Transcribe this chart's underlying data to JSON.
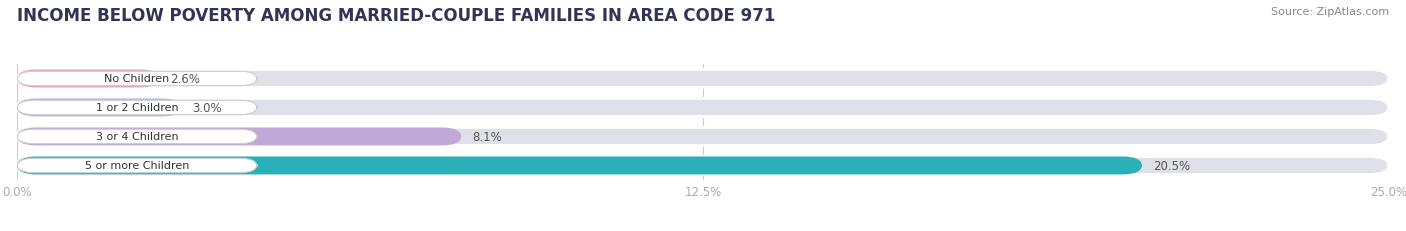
{
  "title": "INCOME BELOW POVERTY AMONG MARRIED-COUPLE FAMILIES IN AREA CODE 971",
  "source": "Source: ZipAtlas.com",
  "categories": [
    "No Children",
    "1 or 2 Children",
    "3 or 4 Children",
    "5 or more Children"
  ],
  "values": [
    2.6,
    3.0,
    8.1,
    20.5
  ],
  "labels": [
    "2.6%",
    "3.0%",
    "8.1%",
    "20.5%"
  ],
  "bar_colors": [
    "#f2a0a8",
    "#aab8e8",
    "#c0a8d8",
    "#2ab0b8"
  ],
  "xlim_max": 25.0,
  "xticks": [
    0.0,
    12.5,
    25.0
  ],
  "xticklabels": [
    "0.0%",
    "12.5%",
    "25.0%"
  ],
  "bg_color": "#ffffff",
  "bar_bg_color": "#e0e0e8",
  "title_fontsize": 12,
  "source_fontsize": 8,
  "bar_height": 0.62,
  "figsize": [
    14.06,
    2.32
  ],
  "dpi": 100
}
